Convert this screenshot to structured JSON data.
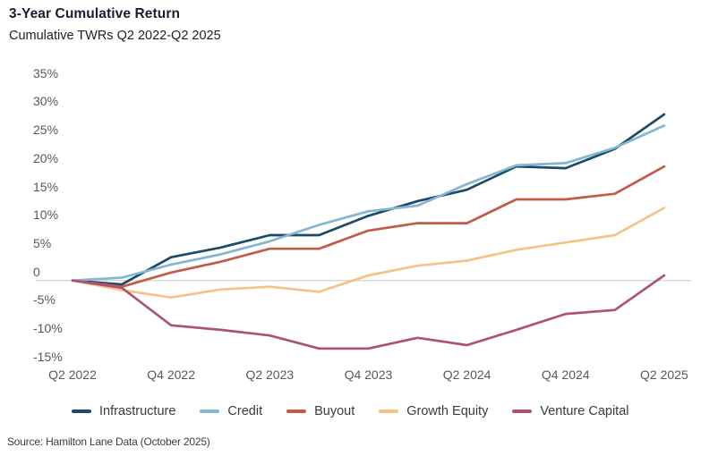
{
  "header": {
    "title": "3-Year Cumulative Return",
    "subtitle": "Cumulative TWRs Q2 2022-Q2 2025"
  },
  "source": "Source: Hamilton Lane Data (October 2025)",
  "colors": {
    "axis_text": "#56585d",
    "zero_line": "#d8d8d8",
    "title_text": "#1b1c30"
  },
  "chart_data": {
    "type": "line",
    "title": "3-Year Cumulative Return",
    "subtitle": "Cumulative TWRs Q2 2022-Q2 2025",
    "unit": "percent cumulative time-weighted return",
    "categories": [
      "Q2 2022",
      "Q3 2022",
      "Q4 2022",
      "Q1 2023",
      "Q2 2023",
      "Q3 2023",
      "Q4 2023",
      "Q1 2024",
      "Q2 2024",
      "Q3 2024",
      "Q4 2024",
      "Q1 2025",
      "Q2 2025"
    ],
    "x_tick_labels": [
      "Q2 2022",
      "Q4 2022",
      "Q2 2023",
      "Q4 2023",
      "Q2 2024",
      "Q4 2024",
      "Q2 2025"
    ],
    "y_ticks": [
      {
        "value": 35,
        "label": "35%"
      },
      {
        "value": 30,
        "label": "30%"
      },
      {
        "value": 25,
        "label": "25%"
      },
      {
        "value": 20,
        "label": "20%"
      },
      {
        "value": 15,
        "label": "15%"
      },
      {
        "value": 10,
        "label": "10%"
      },
      {
        "value": 5,
        "label": "5%"
      },
      {
        "value": 0,
        "label": "0"
      },
      {
        "value": -5,
        "label": "-5%"
      },
      {
        "value": -10,
        "label": "-10%"
      },
      {
        "value": -15,
        "label": "-15%"
      }
    ],
    "ylim": [
      -15,
      35
    ],
    "grid": "zero-line-only",
    "legend_position": "bottom",
    "series": [
      {
        "name": "Infrastructure",
        "color": "#1b4a68",
        "values": [
          0,
          -0.7,
          4.1,
          5.8,
          8.0,
          8.0,
          11.4,
          14.0,
          16.0,
          20.1,
          19.8,
          23.2,
          29.3
        ]
      },
      {
        "name": "Credit",
        "color": "#85b6d1",
        "values": [
          0,
          0.5,
          2.8,
          4.6,
          6.9,
          9.8,
          12.2,
          13.2,
          17.0,
          20.3,
          20.7,
          23.4,
          27.3
        ]
      },
      {
        "name": "Buyout",
        "color": "#c25b47",
        "values": [
          0,
          -1.1,
          1.4,
          3.3,
          5.6,
          5.6,
          8.8,
          10.1,
          10.1,
          14.3,
          14.3,
          15.3,
          20.1
        ]
      },
      {
        "name": "Growth Equity",
        "color": "#f5c287",
        "values": [
          0,
          -1.7,
          -3.0,
          -1.6,
          -1.1,
          -2.0,
          0.9,
          2.6,
          3.5,
          5.4,
          6.7,
          8.0,
          12.8
        ]
      },
      {
        "name": "Venture Capital",
        "color": "#ad5276",
        "values": [
          0,
          -1.3,
          -7.9,
          -8.7,
          -9.7,
          -12.0,
          -12.0,
          -10.1,
          -11.4,
          -8.7,
          -5.9,
          -5.2,
          0.9
        ]
      }
    ]
  }
}
